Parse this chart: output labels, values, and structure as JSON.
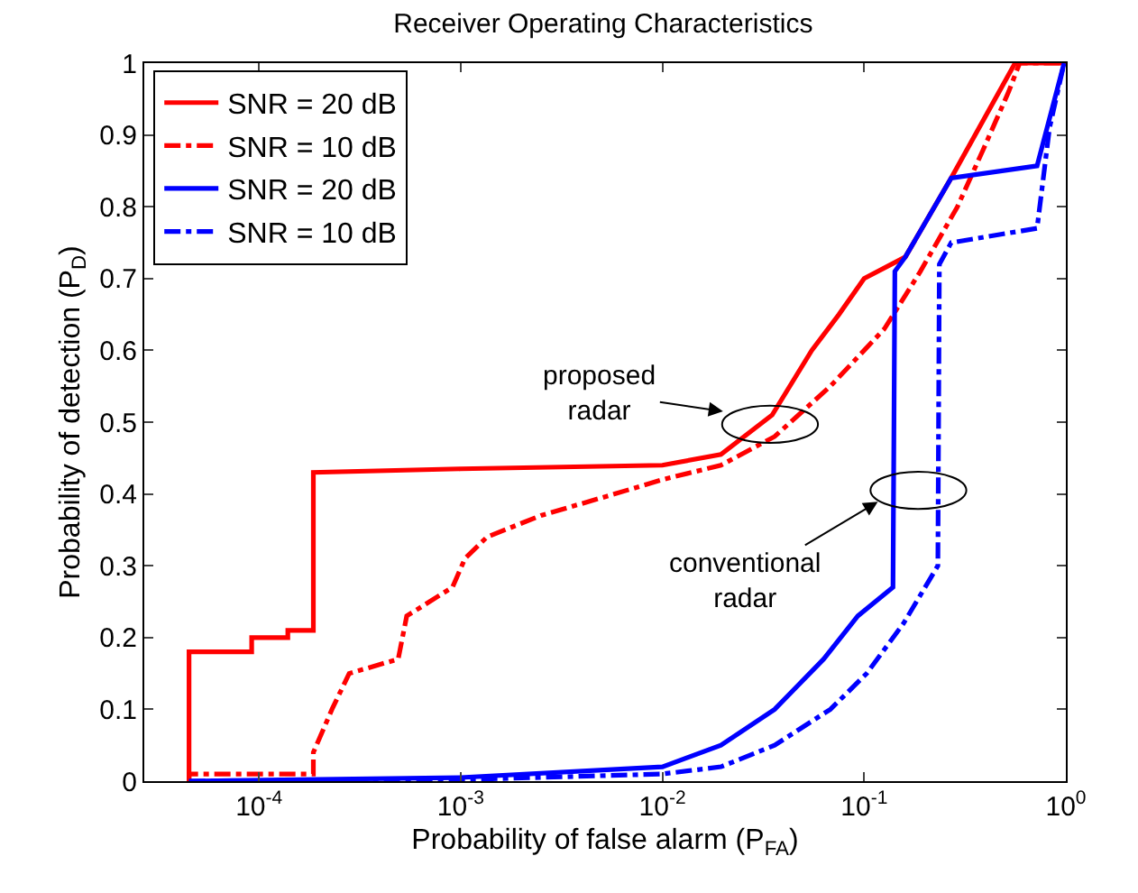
{
  "chart_data": {
    "type": "line",
    "title": "Receiver Operating Characteristics",
    "xlabel": "Probability of false alarm (P$_{FA}$)",
    "ylabel": "Probability of detection (P$_{D}$)",
    "log": "x",
    "xlim": [
      2.7e-05,
      1
    ],
    "ylim": [
      0,
      1
    ],
    "xticks": [
      {
        "value": 0.0001,
        "label": "10$^{-4}$"
      },
      {
        "value": 0.001,
        "label": "10$^{-3}$"
      },
      {
        "value": 0.01,
        "label": "10$^{-2}$"
      },
      {
        "value": 0.1,
        "label": "10$^{-1}$"
      },
      {
        "value": 1,
        "label": "10$^{0}$"
      }
    ],
    "yticks": [
      0,
      0.1,
      0.2,
      0.3,
      0.4,
      0.5,
      0.6,
      0.7,
      0.8,
      0.9,
      1
    ],
    "legend": "top left",
    "marker": "none",
    "series": [
      {
        "name": "SNR = 20 dB",
        "color": "#ff0000",
        "line_style": "solid",
        "x": [
          4.5e-05,
          4.5e-05,
          9.2e-05,
          9.2e-05,
          0.000139,
          0.000139,
          0.000186,
          0.000186,
          0.001,
          0.01,
          0.0195,
          0.035,
          0.055,
          0.075,
          0.1,
          0.16,
          0.27,
          0.56,
          1
        ],
        "values": [
          0,
          0.18,
          0.18,
          0.2,
          0.2,
          0.21,
          0.21,
          0.43,
          0.435,
          0.44,
          0.455,
          0.51,
          0.6,
          0.65,
          0.7,
          0.73,
          0.84,
          1,
          1
        ]
      },
      {
        "name": "SNR = 10 dB",
        "color": "#ff0000",
        "line_style": "dashdot",
        "x": [
          4.5e-05,
          4.5e-05,
          0.000186,
          0.000186,
          0.00023,
          0.00028,
          0.00049,
          0.00054,
          0.00091,
          0.00105,
          0.00135,
          0.0025,
          0.0058,
          0.01,
          0.0195,
          0.036,
          0.068,
          0.126,
          0.19,
          0.29,
          0.39,
          0.52,
          0.59,
          1
        ],
        "values": [
          0,
          0.01,
          0.01,
          0.04,
          0.1,
          0.15,
          0.17,
          0.23,
          0.27,
          0.31,
          0.34,
          0.37,
          0.4,
          0.42,
          0.44,
          0.48,
          0.55,
          0.63,
          0.71,
          0.8,
          0.88,
          0.96,
          1,
          1
        ]
      },
      {
        "name": "SNR = 20 dB",
        "color": "#0000ff",
        "line_style": "solid",
        "x": [
          4.5e-05,
          0.001,
          0.01,
          0.0195,
          0.036,
          0.063,
          0.093,
          0.139,
          0.142,
          0.16,
          0.27,
          0.72,
          0.98
        ],
        "values": [
          0,
          0.005,
          0.02,
          0.05,
          0.1,
          0.17,
          0.23,
          0.27,
          0.71,
          0.73,
          0.84,
          0.857,
          1
        ]
      },
      {
        "name": "SNR = 10 dB",
        "color": "#0000ff",
        "line_style": "dashdot",
        "x": [
          4.5e-05,
          0.001,
          0.01,
          0.0195,
          0.036,
          0.068,
          0.103,
          0.157,
          0.232,
          0.236,
          0.27,
          0.72,
          0.83,
          0.98
        ],
        "values": [
          0,
          0.002,
          0.01,
          0.02,
          0.05,
          0.1,
          0.15,
          0.22,
          0.3,
          0.72,
          0.75,
          0.77,
          0.91,
          1
        ]
      }
    ],
    "annotations": [
      "proposed\nradar",
      "conventional\nradar"
    ]
  }
}
